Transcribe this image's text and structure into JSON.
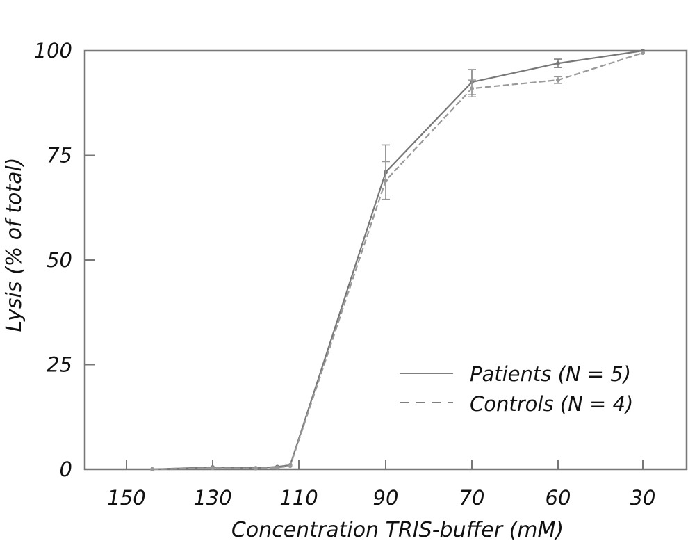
{
  "chart_data": {
    "type": "line",
    "xlabel": "Concentration TRIS-buffer (mM)",
    "ylabel": "Lysis (% of total)",
    "x_ticks": [
      "150",
      "130",
      "110",
      "90",
      "70",
      "60",
      "30"
    ],
    "y_ticks": [
      "0",
      "25",
      "50",
      "75",
      "100"
    ],
    "ylim": [
      0,
      100
    ],
    "grid": false,
    "legend_position": "lower-right",
    "series": [
      {
        "name": "Patients (N = 5)",
        "style": "solid",
        "color": "#777777",
        "x": [
          "144",
          "130",
          "120",
          "115",
          "112",
          "90",
          "70",
          "60",
          "30"
        ],
        "y": [
          0,
          0.5,
          0.3,
          0.6,
          1.0,
          71,
          92.5,
          97,
          100
        ],
        "error": [
          0,
          0,
          0,
          0,
          0,
          6.5,
          3,
          1,
          0
        ]
      },
      {
        "name": "Controls (N = 4)",
        "style": "dashed",
        "color": "#999999",
        "x": [
          "144",
          "130",
          "120",
          "115",
          "112",
          "90",
          "70",
          "60",
          "30"
        ],
        "y": [
          0,
          0.3,
          0.2,
          0.4,
          0.8,
          69,
          91,
          93,
          99.5
        ],
        "error": [
          0,
          0,
          0,
          0,
          0,
          4.5,
          2,
          0.8,
          0
        ]
      }
    ]
  }
}
